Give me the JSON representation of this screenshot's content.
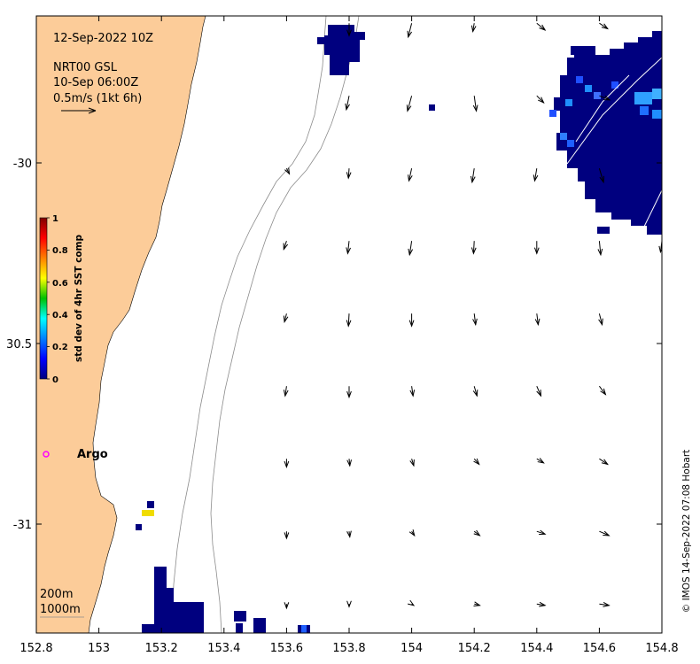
{
  "header": {
    "date": "12-Sep-2022 10Z",
    "product": "NRT00 GSL",
    "product_time": "10-Sep 06:00Z",
    "scale_label": "0.5m/s (1kt 6h)"
  },
  "axes": {
    "x_ticks": [
      "152.8",
      "153",
      "153.2",
      "153.4",
      "153.6",
      "153.8",
      "154",
      "154.2",
      "154.4",
      "154.6",
      "154.8"
    ],
    "y_ticks": [
      "-30",
      "30.5",
      "-31"
    ],
    "x_range": [
      152.8,
      154.8
    ],
    "y_range": [
      -31.3,
      -29.6
    ]
  },
  "colorbar": {
    "title": "std dev of 4hr SST comp",
    "ticks": [
      "1",
      "0.8",
      "0.6",
      "0.4",
      "0.2",
      "0"
    ],
    "range": [
      0,
      1
    ]
  },
  "legend": {
    "isobath_200": "200m",
    "isobath_1000": "1000m"
  },
  "argo": {
    "label": "Argo",
    "lon": 152.82,
    "lat": -30.81,
    "marker_color": "#ff00ff"
  },
  "credit": "© IMOS 14-Sep-2022 07:08 Hobart",
  "colors": {
    "land": "#fccc99",
    "sst_low": "#00007f",
    "sst_mid": "#1f8fff",
    "sst_yellow": "#f0dc00"
  },
  "current_vectors": {
    "lons": [
      153.2,
      153.4,
      153.6,
      153.8,
      154.0,
      154.2,
      154.4,
      154.6,
      154.8
    ],
    "lats": [
      -29.62,
      -29.82,
      -30.02,
      -30.22,
      -30.42,
      -30.62,
      -30.82,
      -31.02,
      -31.22
    ],
    "u_mps": [
      [
        null,
        null,
        null,
        0.0,
        -0.05,
        -0.02,
        0.12,
        0.12,
        0.15
      ],
      [
        null,
        null,
        null,
        -0.04,
        -0.06,
        0.03,
        0.1,
        0.15,
        0.18
      ],
      [
        null,
        null,
        0.04,
        -0.01,
        -0.04,
        -0.03,
        -0.03,
        0.06,
        0.05
      ],
      [
        null,
        null,
        -0.04,
        -0.02,
        -0.03,
        -0.01,
        0.0,
        0.02,
        -0.02
      ],
      [
        null,
        null,
        -0.03,
        -0.01,
        0.0,
        0.02,
        0.02,
        0.04,
        null
      ],
      [
        null,
        null,
        -0.02,
        0.0,
        0.02,
        0.04,
        0.06,
        0.09,
        null
      ],
      [
        null,
        null,
        0.0,
        0.01,
        0.03,
        0.07,
        0.1,
        0.12,
        null
      ],
      [
        null,
        null,
        0.0,
        0.01,
        0.04,
        0.08,
        0.12,
        0.14,
        null
      ],
      [
        null,
        null,
        0.0,
        0.0,
        0.03,
        0.08,
        0.12,
        0.14,
        null
      ]
    ],
    "v_mps": [
      [
        null,
        null,
        null,
        -0.18,
        -0.2,
        -0.12,
        -0.1,
        -0.08,
        -0.07
      ],
      [
        null,
        null,
        null,
        -0.2,
        -0.22,
        -0.22,
        -0.1,
        -0.06,
        -0.1
      ],
      [
        null,
        null,
        -0.08,
        -0.14,
        -0.18,
        -0.2,
        -0.18,
        -0.2,
        -0.22
      ],
      [
        null,
        null,
        -0.12,
        -0.18,
        -0.2,
        -0.18,
        -0.18,
        -0.2,
        -0.16
      ],
      [
        null,
        null,
        -0.12,
        -0.18,
        -0.18,
        -0.16,
        -0.16,
        -0.16,
        null
      ],
      [
        null,
        null,
        -0.14,
        -0.16,
        -0.14,
        -0.14,
        -0.14,
        -0.12,
        null
      ],
      [
        null,
        null,
        -0.12,
        -0.1,
        -0.1,
        -0.08,
        -0.06,
        -0.08,
        null
      ],
      [
        null,
        null,
        -0.1,
        -0.08,
        -0.06,
        -0.06,
        -0.04,
        -0.06,
        null
      ],
      [
        null,
        null,
        -0.06,
        -0.04,
        -0.02,
        -0.02,
        -0.02,
        -0.02,
        null
      ]
    ]
  }
}
